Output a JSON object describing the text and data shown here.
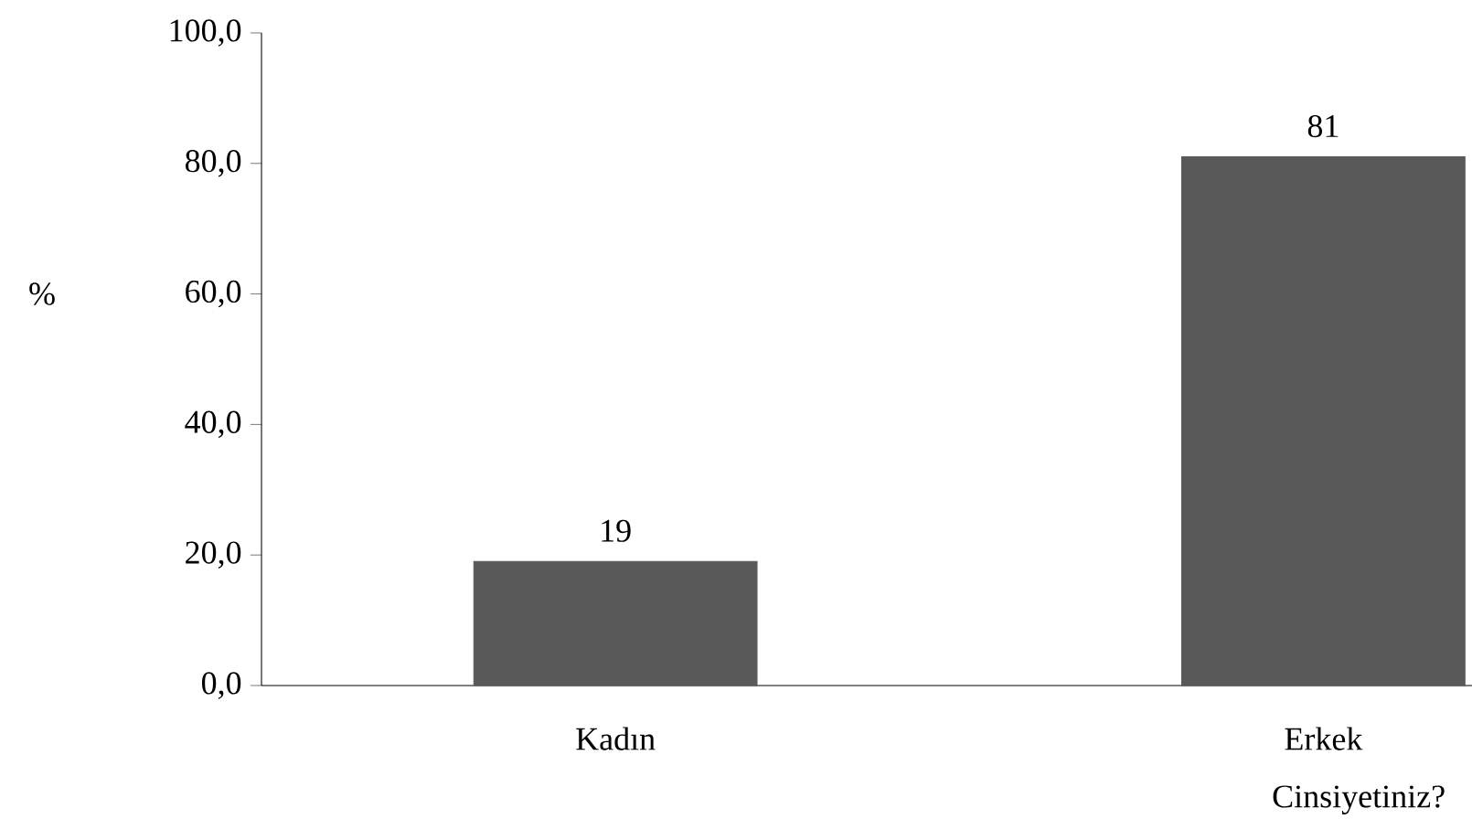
{
  "chart_data": {
    "type": "bar",
    "xlabel": "Cinsiyetiniz?",
    "ylabel": "%",
    "categories": [
      "Kadın",
      "Erkek"
    ],
    "values": [
      19,
      81
    ],
    "color": "#595959",
    "data_labels": true,
    "ylim": [
      0,
      100
    ],
    "yticks": [
      {
        "value": 0,
        "label": "0,0"
      },
      {
        "value": 20,
        "label": "20,0"
      },
      {
        "value": 40,
        "label": "40,0"
      },
      {
        "value": 60,
        "label": "60,0"
      },
      {
        "value": 80,
        "label": "80,0"
      },
      {
        "value": 100,
        "label": "100,0"
      }
    ],
    "grid": false
  }
}
